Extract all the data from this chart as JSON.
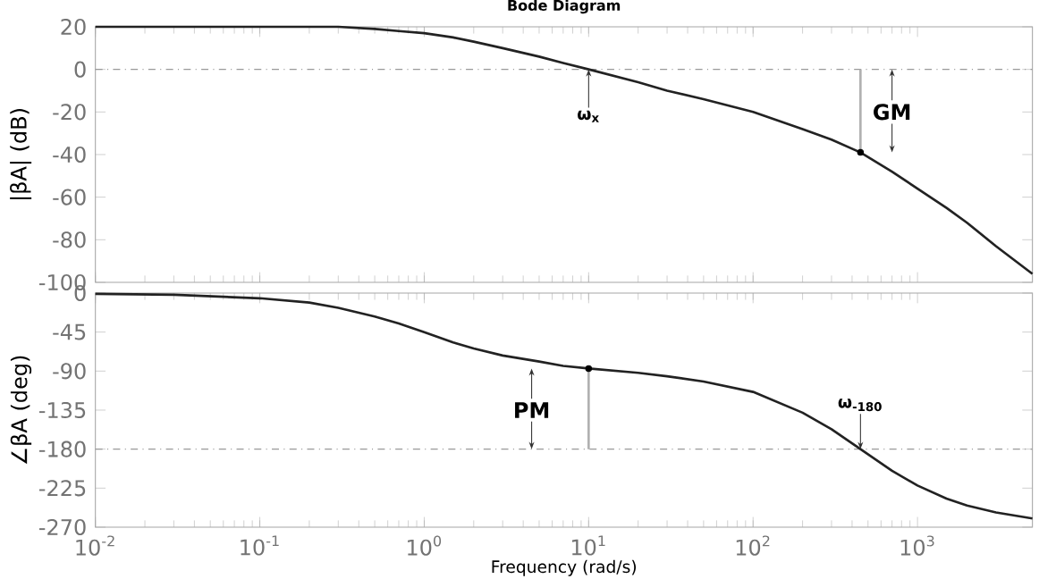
{
  "chart_data": [
    {
      "type": "line",
      "title": "Bode Diagram",
      "ylabel": "|βA| (dB)",
      "log": "x",
      "tick_labels": "y",
      "xlim": [
        0.01,
        5000
      ],
      "ylim": [
        -100,
        20
      ],
      "xticks": [
        {
          "value": 0.01,
          "label": null
        },
        {
          "value": 0.1,
          "label": null
        },
        {
          "value": 1,
          "label": null
        },
        {
          "value": 10,
          "label": null
        },
        {
          "value": 100,
          "label": null
        },
        {
          "value": 1000,
          "label": null
        }
      ],
      "yticks": [
        -100,
        -80,
        -60,
        -40,
        -20,
        0,
        20
      ],
      "series": [
        {
          "color": "#222222",
          "marker": "none",
          "line_style": "solid",
          "x": [
            0.01,
            0.03,
            0.1,
            0.2,
            0.3,
            0.5,
            0.7,
            1,
            1.5,
            2,
            3,
            5,
            7,
            10,
            20,
            30,
            50,
            100,
            200,
            300,
            450,
            700,
            1000,
            1500,
            2000,
            3000,
            5000
          ],
          "values": [
            20,
            20,
            20,
            20,
            20,
            19,
            18,
            17,
            15,
            13,
            10,
            6,
            3,
            0,
            -6,
            -10,
            -14,
            -20,
            -28,
            -33,
            -39,
            -48,
            -56,
            -65,
            -72,
            -83,
            -96
          ]
        },
        {
          "color": "#b2b2b2",
          "marker": "none",
          "line_style": "solid",
          "x": [
            450,
            450
          ],
          "values": [
            -39,
            0
          ]
        },
        {
          "type": "scatter",
          "color": "#000000",
          "marker": "circle",
          "x": [
            450
          ],
          "values": [
            -39
          ]
        }
      ],
      "ref_lines": [
        {
          "axis": "y",
          "value": 0,
          "color": "#999999",
          "line_style": "dashdot"
        }
      ],
      "annotations": [
        {
          "text": "ω$_{x}$",
          "x": 10,
          "y": 0
        },
        {
          "text": "GM",
          "x": 700,
          "y": -20
        }
      ]
    },
    {
      "type": "line",
      "xlabel": "Frequency  (rad/s)",
      "ylabel": "∠βA (deg)",
      "log": "x",
      "xlim": [
        0.01,
        5000
      ],
      "ylim": [
        -270,
        0
      ],
      "xticks": [
        {
          "value": 0.01,
          "label": "10$^{-2}$"
        },
        {
          "value": 0.1,
          "label": "10$^{-1}$"
        },
        {
          "value": 1,
          "label": "10$^{0}$"
        },
        {
          "value": 10,
          "label": "10$^{1}$"
        },
        {
          "value": 100,
          "label": "10$^{2}$"
        },
        {
          "value": 1000,
          "label": "10$^{3}$"
        }
      ],
      "yticks": [
        -270,
        -225,
        -180,
        -135,
        -90,
        -45,
        0
      ],
      "series": [
        {
          "color": "#222222",
          "marker": "none",
          "line_style": "solid",
          "x": [
            0.01,
            0.03,
            0.1,
            0.2,
            0.3,
            0.5,
            0.7,
            1,
            1.5,
            2,
            3,
            5,
            7,
            10,
            20,
            30,
            50,
            100,
            200,
            300,
            450,
            700,
            1000,
            1500,
            2000,
            3000,
            5000
          ],
          "values": [
            -1,
            -2,
            -6,
            -11,
            -17,
            -27,
            -35,
            -45,
            -57,
            -64,
            -72,
            -79,
            -84,
            -87,
            -92,
            -96,
            -102,
            -114,
            -138,
            -157,
            -180,
            -205,
            -222,
            -237,
            -245,
            -253,
            -260
          ]
        },
        {
          "color": "#b2b2b2",
          "marker": "none",
          "line_style": "solid",
          "x": [
            10,
            10
          ],
          "values": [
            -180,
            -87
          ]
        },
        {
          "type": "scatter",
          "color": "#000000",
          "marker": "circle",
          "x": [
            10
          ],
          "values": [
            -87
          ]
        }
      ],
      "ref_lines": [
        {
          "axis": "y",
          "value": -180,
          "color": "#999999",
          "line_style": "dashdot"
        }
      ],
      "annotations": [
        {
          "text": "PM",
          "x": 4.5,
          "y": -135
        },
        {
          "text": "ω$_{-180}$",
          "x": 450,
          "y": -180
        }
      ]
    }
  ]
}
